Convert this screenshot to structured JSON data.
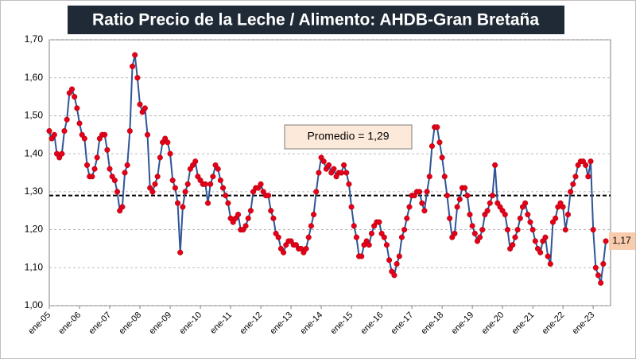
{
  "chart_data": {
    "type": "line",
    "title": "Ratio Precio de la  Leche / Alimento: AHDB-Gran Bretaña",
    "categories": [
      "ene-05",
      null,
      null,
      null,
      null,
      null,
      null,
      null,
      null,
      null,
      null,
      null,
      "ene-06",
      null,
      null,
      null,
      null,
      null,
      null,
      null,
      null,
      null,
      null,
      null,
      "ene-07",
      null,
      null,
      null,
      null,
      null,
      null,
      null,
      null,
      null,
      null,
      null,
      "ene-08",
      null,
      null,
      null,
      null,
      null,
      null,
      null,
      null,
      null,
      null,
      null,
      "ene-09",
      null,
      null,
      null,
      null,
      null,
      null,
      null,
      null,
      null,
      null,
      null,
      "ene-10",
      null,
      null,
      null,
      null,
      null,
      null,
      null,
      null,
      null,
      null,
      null,
      "ene-11",
      null,
      null,
      null,
      null,
      null,
      null,
      null,
      null,
      null,
      null,
      null,
      "ene-12",
      null,
      null,
      null,
      null,
      null,
      null,
      null,
      null,
      null,
      null,
      null,
      "ene-13",
      null,
      null,
      null,
      null,
      null,
      null,
      null,
      null,
      null,
      null,
      null,
      "ene-14",
      null,
      null,
      null,
      null,
      null,
      null,
      null,
      null,
      null,
      null,
      null,
      "ene-15",
      null,
      null,
      null,
      null,
      null,
      null,
      null,
      null,
      null,
      null,
      null,
      "ene-16",
      null,
      null,
      null,
      null,
      null,
      null,
      null,
      null,
      null,
      null,
      null,
      "ene-17",
      null,
      null,
      null,
      null,
      null,
      null,
      null,
      null,
      null,
      null,
      null,
      "ene-18",
      null,
      null,
      null,
      null,
      null,
      null,
      null,
      null,
      null,
      null,
      null,
      "ene-19",
      null,
      null,
      null,
      null,
      null,
      null,
      null,
      null,
      null,
      null,
      null,
      "ene-20",
      null,
      null,
      null,
      null,
      null,
      null,
      null,
      null,
      null,
      null,
      null,
      "ene-21",
      null,
      null,
      null,
      null,
      null,
      null,
      null,
      null,
      null,
      null,
      null,
      "ene-22",
      null,
      null,
      null,
      null,
      null,
      null,
      null,
      null,
      null,
      null,
      null,
      "ene-23",
      null,
      null,
      null,
      null,
      null
    ],
    "values": [
      1.46,
      1.44,
      1.45,
      1.4,
      1.39,
      1.4,
      1.46,
      1.49,
      1.56,
      1.57,
      1.55,
      1.52,
      1.48,
      1.45,
      1.44,
      1.37,
      1.34,
      1.34,
      1.36,
      1.39,
      1.44,
      1.45,
      1.45,
      1.41,
      1.36,
      1.34,
      1.33,
      1.3,
      1.25,
      1.26,
      1.35,
      1.37,
      1.46,
      1.63,
      1.66,
      1.6,
      1.53,
      1.51,
      1.52,
      1.45,
      1.31,
      1.3,
      1.32,
      1.34,
      1.39,
      1.43,
      1.44,
      1.43,
      1.4,
      1.33,
      1.31,
      1.27,
      1.14,
      1.26,
      1.3,
      1.32,
      1.36,
      1.37,
      1.38,
      1.34,
      1.33,
      1.32,
      1.32,
      1.27,
      1.32,
      1.34,
      1.37,
      1.36,
      1.33,
      1.31,
      1.29,
      1.27,
      1.23,
      1.22,
      1.23,
      1.24,
      1.2,
      1.2,
      1.21,
      1.23,
      1.25,
      1.3,
      1.31,
      1.31,
      1.32,
      1.3,
      1.29,
      1.29,
      1.25,
      1.23,
      1.19,
      1.18,
      1.15,
      1.14,
      1.16,
      1.17,
      1.17,
      1.16,
      1.16,
      1.15,
      1.15,
      1.14,
      1.15,
      1.18,
      1.21,
      1.24,
      1.3,
      1.35,
      1.39,
      1.38,
      1.36,
      1.37,
      1.35,
      1.36,
      1.34,
      1.35,
      1.35,
      1.37,
      1.35,
      1.32,
      1.26,
      1.21,
      1.18,
      1.13,
      1.13,
      1.16,
      1.17,
      1.16,
      1.19,
      1.21,
      1.22,
      1.22,
      1.19,
      1.18,
      1.16,
      1.12,
      1.09,
      1.08,
      1.11,
      1.13,
      1.18,
      1.2,
      1.23,
      1.26,
      1.29,
      1.29,
      1.3,
      1.3,
      1.27,
      1.25,
      1.3,
      1.34,
      1.42,
      1.47,
      1.47,
      1.43,
      1.39,
      1.34,
      1.29,
      1.23,
      1.18,
      1.19,
      1.26,
      1.28,
      1.31,
      1.31,
      1.29,
      1.24,
      1.21,
      1.19,
      1.17,
      1.18,
      1.2,
      1.24,
      1.25,
      1.27,
      1.29,
      1.37,
      1.27,
      1.26,
      1.25,
      1.24,
      1.2,
      1.15,
      1.16,
      1.18,
      1.2,
      1.23,
      1.26,
      1.27,
      1.24,
      1.22,
      1.2,
      1.17,
      1.15,
      1.14,
      1.17,
      1.18,
      1.13,
      1.11,
      1.22,
      1.23,
      1.26,
      1.27,
      1.26,
      1.2,
      1.24,
      1.3,
      1.32,
      1.34,
      1.37,
      1.38,
      1.38,
      1.37,
      1.34,
      1.38,
      1.2,
      1.1,
      1.08,
      1.06,
      1.11,
      1.17
    ],
    "color": "#2f5597",
    "marker_color": "#e3001b",
    "ylim": [
      1.0,
      1.7
    ],
    "yticks": [
      {
        "value": 1.0,
        "label": "1,00"
      },
      {
        "value": 1.1,
        "label": "1,10"
      },
      {
        "value": 1.2,
        "label": "1,20"
      },
      {
        "value": 1.3,
        "label": "1,30"
      },
      {
        "value": 1.4,
        "label": "1,40"
      },
      {
        "value": 1.5,
        "label": "1,50"
      },
      {
        "value": 1.6,
        "label": "1,60"
      },
      {
        "value": 1.7,
        "label": "1,70"
      }
    ],
    "grid": true,
    "average": {
      "value": 1.29,
      "label": "Promedio =  1,29"
    },
    "end_label": {
      "value": 1.17,
      "label": "1,17"
    }
  }
}
